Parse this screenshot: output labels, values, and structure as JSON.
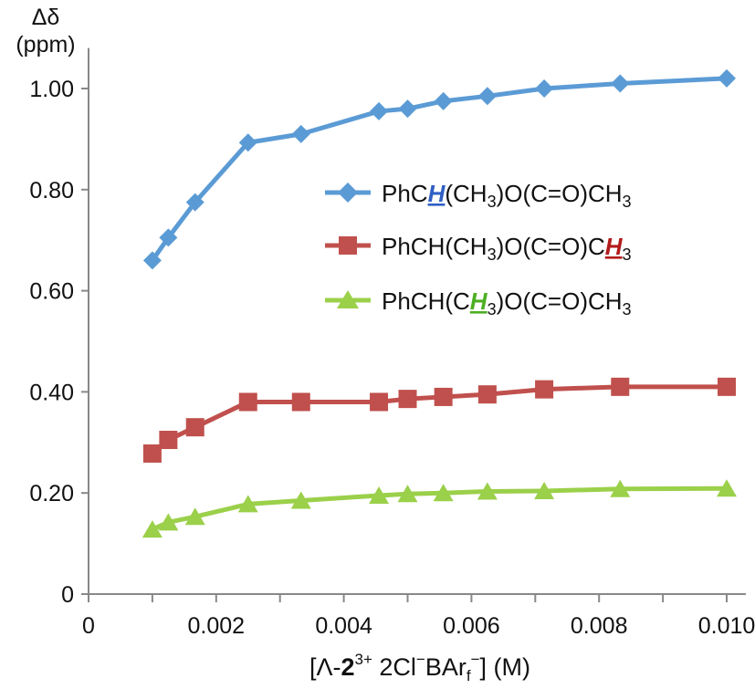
{
  "chart_data": {
    "type": "line",
    "ylabel_line1": "Δδ",
    "ylabel_line2": "(ppm)",
    "xlabel": {
      "open": "[Λ-",
      "bold": "2",
      "sup1": "3+",
      "mid": " 2Cl",
      "sup2": "−",
      "mid2": "BAr",
      "sub": "f",
      "sup3": "−",
      "close": "] (M)"
    },
    "xlim": [
      0,
      0.0103
    ],
    "ylim": [
      0,
      1.08
    ],
    "x_ticks": [
      {
        "value": 0,
        "label": "0"
      },
      {
        "value": 0.002,
        "label": "0.002"
      },
      {
        "value": 0.004,
        "label": "0.004"
      },
      {
        "value": 0.006,
        "label": "0.006"
      },
      {
        "value": 0.008,
        "label": "0.008"
      },
      {
        "value": 0.01,
        "label": "0.010"
      }
    ],
    "y_ticks": [
      {
        "value": 0,
        "label": "0"
      },
      {
        "value": 0.2,
        "label": "0.20"
      },
      {
        "value": 0.4,
        "label": "0.40"
      },
      {
        "value": 0.6,
        "label": "0.60"
      },
      {
        "value": 0.8,
        "label": "0.80"
      },
      {
        "value": 1.0,
        "label": "1.00"
      }
    ],
    "x_minor_tick_step": 0.001,
    "grid": false,
    "legend_position": "center-right",
    "x": [
      0.001,
      0.00125,
      0.00167,
      0.0025,
      0.00333,
      0.00455,
      0.005,
      0.00556,
      0.00625,
      0.00714,
      0.00833,
      0.01
    ],
    "series": [
      {
        "marker": "diamond",
        "color": "#5b9bd5",
        "highlight_color": "#2f5fc4",
        "legend": {
          "pre": "PhC",
          "hl": "H",
          "post": "(CH",
          "sub": "3",
          "post2": ")O(C=O)CH",
          "sub2": "3"
        },
        "values": [
          0.66,
          0.705,
          0.775,
          0.893,
          0.91,
          0.955,
          0.96,
          0.975,
          0.985,
          1.0,
          1.01,
          1.02
        ]
      },
      {
        "marker": "square",
        "color": "#c0504d",
        "highlight_color": "#b31b1b",
        "legend": {
          "pre": "PhCH(CH",
          "sub": "3",
          "mid": ")O(C=O)C",
          "hl": "H",
          "post": "",
          "sub2": "3"
        },
        "values": [
          0.278,
          0.305,
          0.33,
          0.38,
          0.38,
          0.38,
          0.386,
          0.39,
          0.395,
          0.405,
          0.41,
          0.41
        ]
      },
      {
        "marker": "triangle",
        "color": "#9bd04a",
        "highlight_color": "#4caf23",
        "legend": {
          "pre": "PhCH(C",
          "hl": "H",
          "sub": "3",
          "post": ")O(C=O)CH",
          "sub2": "3"
        },
        "values": [
          0.128,
          0.142,
          0.153,
          0.178,
          0.185,
          0.195,
          0.198,
          0.2,
          0.203,
          0.204,
          0.208,
          0.209
        ]
      }
    ]
  }
}
